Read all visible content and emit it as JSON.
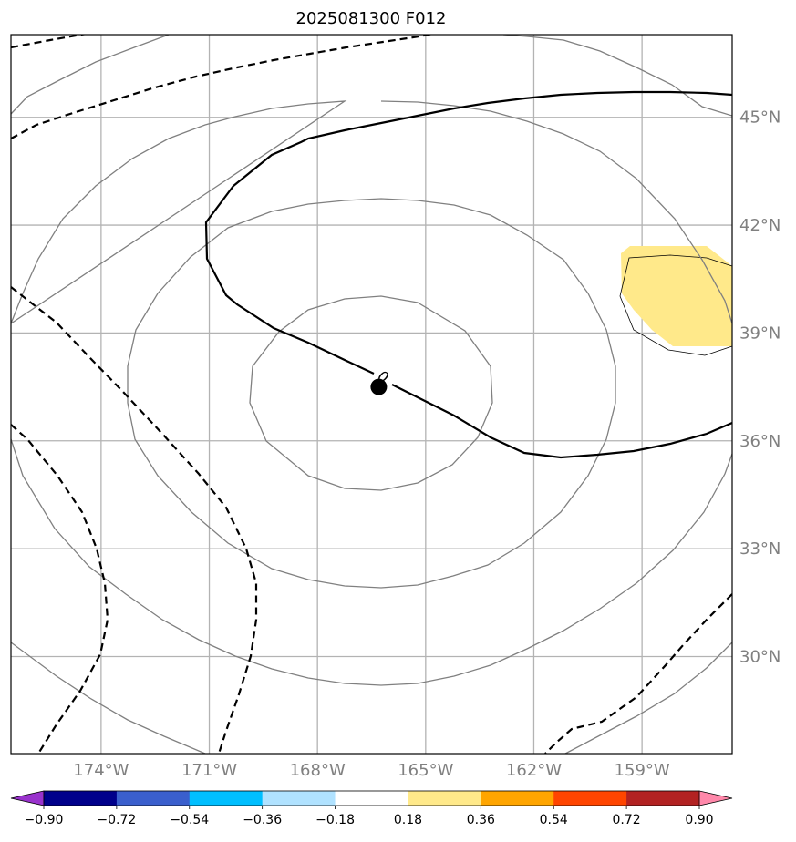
{
  "title": "2025081300 F012",
  "chart_data": {
    "type": "contour-map",
    "title": "2025081300 F012",
    "map": {
      "lon_range": [
        -176.5,
        -156.5
      ],
      "lat_range": [
        27.3,
        47.3
      ],
      "grid": true,
      "lon_ticks": [
        "174°W",
        "171°W",
        "168°W",
        "165°W",
        "162°W",
        "159°W"
      ],
      "lon_tick_values": [
        -174,
        -171,
        -168,
        -165,
        -162,
        -159
      ],
      "lat_ticks": [
        "45°N",
        "42°N",
        "39°N",
        "36°N",
        "33°N",
        "30°N"
      ],
      "lat_tick_values": [
        45,
        42,
        39,
        36,
        33,
        30
      ],
      "lat_tick_side": "right"
    },
    "center_marker": {
      "lon": -166.3,
      "lat": 37.5
    },
    "zero_contour_label": "0",
    "fill_region": {
      "color": "#ffe98a",
      "level_range": [
        0.18,
        0.36
      ]
    },
    "colorbar": {
      "orientation": "horizontal",
      "extend": "both",
      "tick_labels": [
        "−0.90",
        "−0.72",
        "−0.54",
        "−0.36",
        "−0.18",
        "0.18",
        "0.36",
        "0.54",
        "0.72",
        "0.90"
      ],
      "boundaries": [
        -0.9,
        -0.72,
        -0.54,
        -0.36,
        -0.18,
        0.18,
        0.36,
        0.54,
        0.72,
        0.9
      ],
      "colors": [
        "#9932cc",
        "#00008b",
        "#3a5fcd",
        "#00bfff",
        "#b0e2ff",
        "#ffffff",
        "#ffe98a",
        "#ffa500",
        "#ff4500",
        "#b22222",
        "#ff88aa"
      ]
    }
  }
}
